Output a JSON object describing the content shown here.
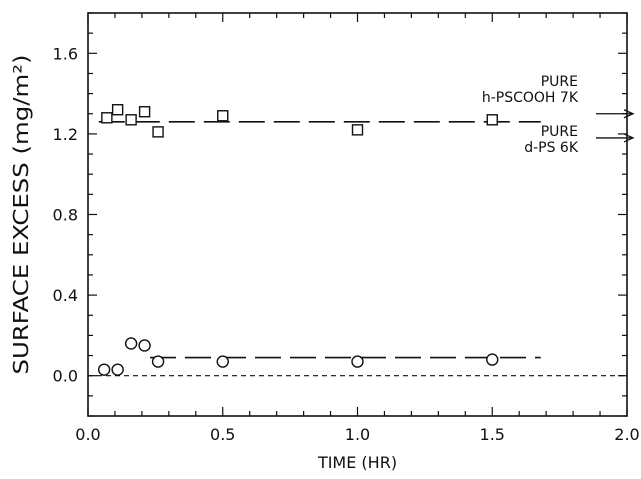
{
  "chart_data": {
    "type": "scatter",
    "xlabel": "TIME  (HR)",
    "ylabel": "SURFACE EXCESS  (mg/m²)",
    "xlim": [
      0.0,
      2.0
    ],
    "ylim": [
      -0.2,
      1.8
    ],
    "x_ticks": [
      "0.0",
      "0.5",
      "1.0",
      "1.5",
      "2.0"
    ],
    "x_tick_values": [
      0.0,
      0.5,
      1.0,
      1.5,
      2.0
    ],
    "y_ticks": [
      "0.0",
      "0.4",
      "0.8",
      "1.2",
      "1.6"
    ],
    "y_tick_values": [
      0.0,
      0.4,
      0.8,
      1.2,
      1.6
    ],
    "grid": false,
    "series": [
      {
        "marker": "square",
        "points": [
          {
            "x": 0.07,
            "y": 1.28
          },
          {
            "x": 0.11,
            "y": 1.32
          },
          {
            "x": 0.16,
            "y": 1.27
          },
          {
            "x": 0.21,
            "y": 1.31
          },
          {
            "x": 0.26,
            "y": 1.21
          },
          {
            "x": 0.5,
            "y": 1.29
          },
          {
            "x": 1.0,
            "y": 1.22
          },
          {
            "x": 1.5,
            "y": 1.27
          }
        ],
        "fit_line": {
          "x": [
            0.04,
            1.68
          ],
          "y": [
            1.26,
            1.26
          ],
          "style": "long-dash"
        }
      },
      {
        "marker": "circle",
        "points": [
          {
            "x": 0.06,
            "y": 0.03
          },
          {
            "x": 0.11,
            "y": 0.03
          },
          {
            "x": 0.16,
            "y": 0.16
          },
          {
            "x": 0.21,
            "y": 0.15
          },
          {
            "x": 0.26,
            "y": 0.07
          },
          {
            "x": 0.5,
            "y": 0.07
          },
          {
            "x": 1.0,
            "y": 0.07
          },
          {
            "x": 1.5,
            "y": 0.08
          }
        ],
        "fit_line": {
          "x": [
            0.23,
            1.68
          ],
          "y": [
            0.09,
            0.09
          ],
          "style": "long-dash"
        }
      }
    ],
    "baseline": {
      "y": 0.0,
      "style": "short-dash"
    },
    "annotations": [
      {
        "lines": [
          "PURE",
          "h-PSCOOH  7K"
        ],
        "arrow_y": 1.3
      },
      {
        "lines": [
          "PURE",
          "d-PS  6K"
        ],
        "arrow_y": 1.18
      }
    ]
  }
}
